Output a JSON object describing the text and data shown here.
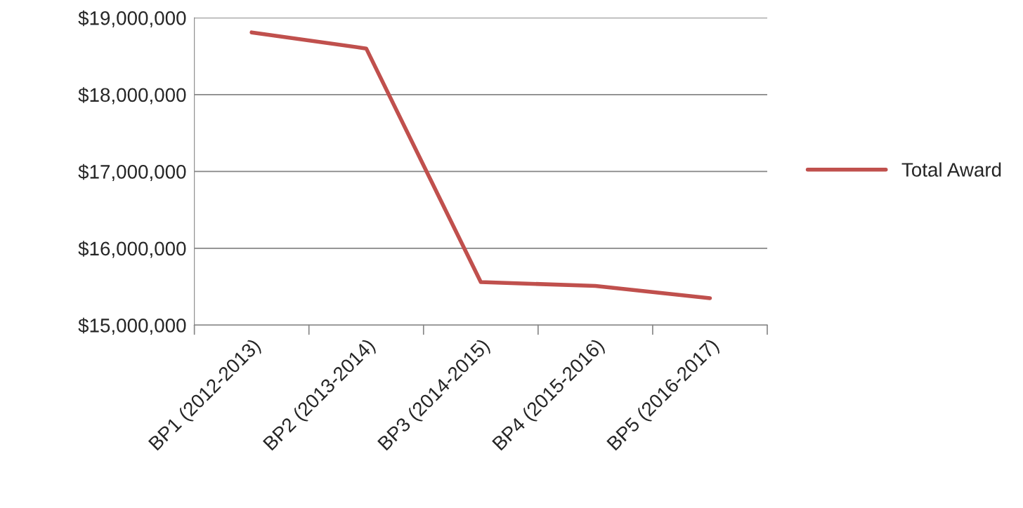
{
  "chart_data": {
    "type": "line",
    "categories": [
      "BP1 (2012-2013)",
      "BP2 (2013-2014)",
      "BP3 (2014-2015)",
      "BP4 (2015-2016)",
      "BP5 (2016-2017)"
    ],
    "series": [
      {
        "name": "Total Award",
        "color": "#c0504d",
        "values": [
          18810000,
          18600000,
          15560000,
          15510000,
          15350000
        ]
      }
    ],
    "ylim": [
      15000000,
      19000000
    ],
    "yticks": [
      {
        "value": 15000000,
        "label": "$15,000,000"
      },
      {
        "value": 16000000,
        "label": "$16,000,000"
      },
      {
        "value": 17000000,
        "label": "$17,000,000"
      },
      {
        "value": 18000000,
        "label": "$18,000,000"
      },
      {
        "value": 19000000,
        "label": "$19,000,000"
      }
    ],
    "grid": "y",
    "legend": "right",
    "marker": "none",
    "line_style": "solid"
  }
}
